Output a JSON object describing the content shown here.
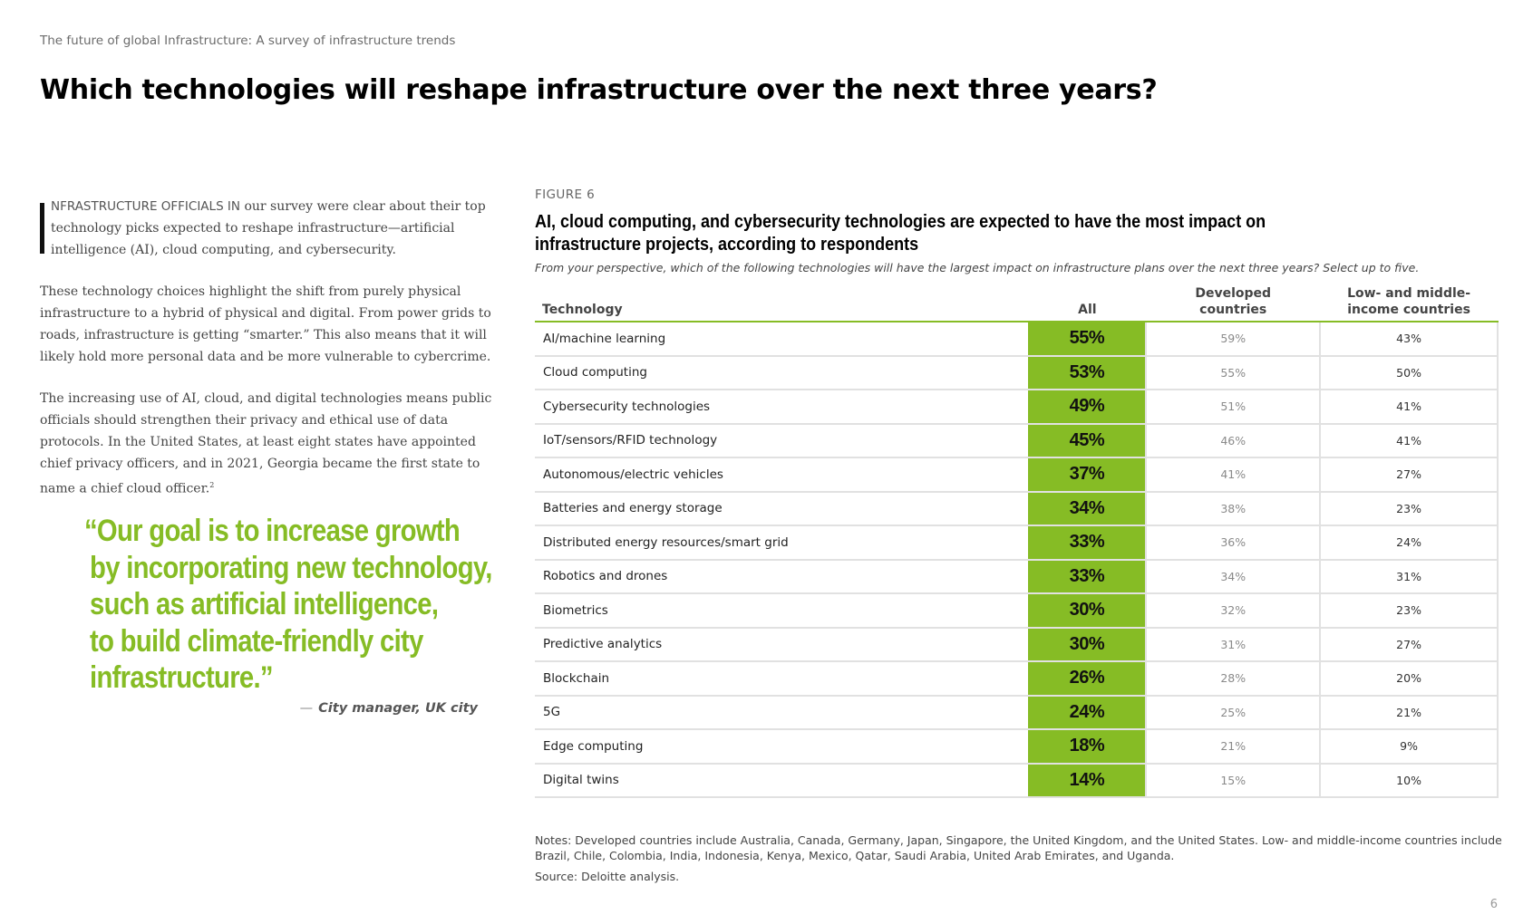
{
  "header": {
    "running_title": "The future of global Infrastructure: A survey of infrastructure trends",
    "page_title": "Which technologies will reshape infrastructure over the next three years?"
  },
  "body": {
    "lead_caps": "NFRASTRUCTURE OFFICIALS IN",
    "lead_rest": " our survey were clear about their top technology picks expected to reshape infrastructure—artificial intelligence (AI), cloud computing, and cybersecurity.",
    "para1": "These technology choices highlight the shift from purely physical infrastructure to a hybrid of physical and digital. From power grids to roads, infrastructure is getting “smarter.” This also means that it will likely hold more personal data and be more vulnerable to cybercrime.",
    "para2": "The increasing use of AI, cloud, and digital technologies means public officials should strengthen their privacy and ethical use of data protocols. In the United States, at least eight states have appointed chief privacy officers, and in 2021, Georgia became the first state to name a chief cloud officer.",
    "para2_footnote": "2"
  },
  "quote": {
    "lines": [
      "“Our goal is to increase growth",
      "by incorporating new technology,",
      "such as artificial intelligence,",
      "to build climate-friendly city",
      "infrastructure.”"
    ],
    "dash": "—",
    "attribution": "City manager, UK city"
  },
  "figure": {
    "label": "FIGURE 6",
    "title": "AI, cloud computing, and cybersecurity technologies are expected to have the most impact on infrastructure projects, according to respondents",
    "question": "From your perspective, which of the following technologies will have the largest impact on infrastructure plans over the next three years? Select up to five."
  },
  "chart_data": {
    "type": "table",
    "title": "AI, cloud computing, and cybersecurity technologies are expected to have the most impact on infrastructure projects, according to respondents",
    "columns": [
      "Technology",
      "All",
      "Developed countries",
      "Low- and middle-income countries"
    ],
    "rows": [
      {
        "technology": "AI/machine learning",
        "all": "55%",
        "developed": "59%",
        "low_middle": "43%"
      },
      {
        "technology": "Cloud computing",
        "all": "53%",
        "developed": "55%",
        "low_middle": "50%"
      },
      {
        "technology": "Cybersecurity technologies",
        "all": "49%",
        "developed": "51%",
        "low_middle": "41%"
      },
      {
        "technology": "IoT/sensors/RFID technology",
        "all": "45%",
        "developed": "46%",
        "low_middle": "41%"
      },
      {
        "technology": "Autonomous/electric vehicles",
        "all": "37%",
        "developed": "41%",
        "low_middle": "27%"
      },
      {
        "technology": "Batteries and energy storage",
        "all": "34%",
        "developed": "38%",
        "low_middle": "23%"
      },
      {
        "technology": "Distributed energy resources/smart grid",
        "all": "33%",
        "developed": "36%",
        "low_middle": "24%"
      },
      {
        "technology": "Robotics and drones",
        "all": "33%",
        "developed": "34%",
        "low_middle": "31%"
      },
      {
        "technology": "Biometrics",
        "all": "30%",
        "developed": "32%",
        "low_middle": "23%"
      },
      {
        "technology": "Predictive analytics",
        "all": "30%",
        "developed": "31%",
        "low_middle": "27%"
      },
      {
        "technology": "Blockchain",
        "all": "26%",
        "developed": "28%",
        "low_middle": "20%"
      },
      {
        "technology": "5G",
        "all": "24%",
        "developed": "25%",
        "low_middle": "21%"
      },
      {
        "technology": "Edge computing",
        "all": "18%",
        "developed": "21%",
        "low_middle": "9%"
      },
      {
        "technology": "Digital twins",
        "all": "14%",
        "developed": "15%",
        "low_middle": "10%"
      }
    ]
  },
  "table_headers": {
    "technology": "Technology",
    "all": "All",
    "developed_line1": "Developed",
    "developed_line2": "countries",
    "low_line1": "Low- and middle-",
    "low_line2": "income countries"
  },
  "footer": {
    "notes": "Notes: Developed countries include Australia, Canada, Germany, Japan, Singapore, the United Kingdom, and the United States. Low- and middle-income countries include Brazil, Chile, Colombia, India, Indonesia, Kenya, Mexico, Qatar, Saudi Arabia, United Arab Emirates, and Uganda.",
    "source": "Source: Deloitte analysis.",
    "page_number": "6"
  },
  "colors": {
    "accent_green": "#86bc25",
    "text_dark": "#000000",
    "rule_gray": "#e1e1e1"
  }
}
